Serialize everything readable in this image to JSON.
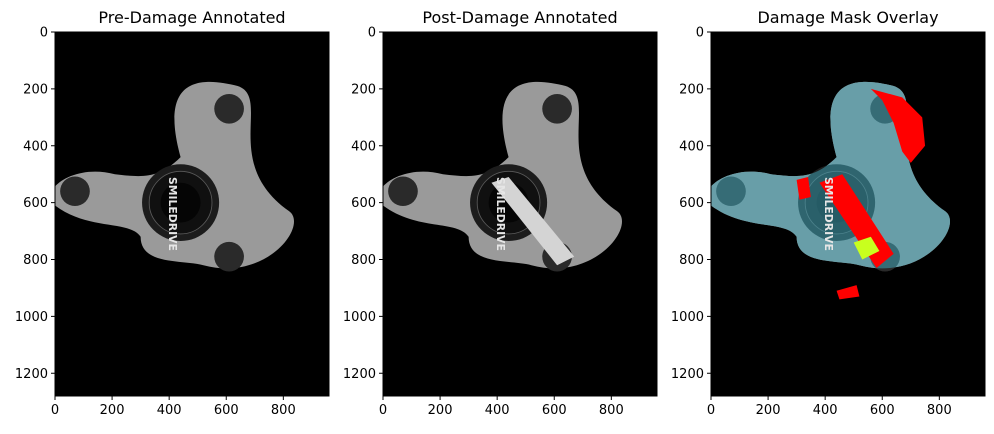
{
  "figure": {
    "panels": [
      {
        "title": "Pre-Damage Annotated"
      },
      {
        "title": "Post-Damage Annotated"
      },
      {
        "title": "Damage Mask Overlay"
      }
    ]
  },
  "chart_data": [
    {
      "type": "image",
      "title": "Pre-Damage Annotated",
      "x_ticks": [
        0,
        200,
        400,
        600,
        800
      ],
      "y_ticks": [
        0,
        200,
        400,
        600,
        800,
        1000,
        1200
      ],
      "xlim": [
        0,
        960
      ],
      "ylim": [
        1280,
        0
      ],
      "image_label_text": "SMILEDRIVE",
      "image_content": "grayscale three-lobed speakerphone device on black background"
    },
    {
      "type": "image",
      "title": "Post-Damage Annotated",
      "x_ticks": [
        0,
        200,
        400,
        600,
        800
      ],
      "y_ticks": [
        0,
        200,
        400,
        600,
        800,
        1000,
        1200
      ],
      "xlim": [
        0,
        960
      ],
      "ylim": [
        1280,
        0
      ],
      "image_label_text": "SMILEDRIVE",
      "image_content": "same device with a light diagonal strip across the center"
    },
    {
      "type": "image",
      "title": "Damage Mask Overlay",
      "x_ticks": [
        0,
        200,
        400,
        600,
        800
      ],
      "y_ticks": [
        0,
        200,
        400,
        600,
        800,
        1000,
        1200
      ],
      "xlim": [
        0,
        960
      ],
      "ylim": [
        1280,
        0
      ],
      "image_label_text": "SMILEDRIVE",
      "image_content": "cyan-tinted device with red damage regions and a yellow-green patch",
      "colors": {
        "tint": "#3fa3b5",
        "damage": "#ff0000",
        "highlight": "#c8ff1e"
      }
    }
  ]
}
